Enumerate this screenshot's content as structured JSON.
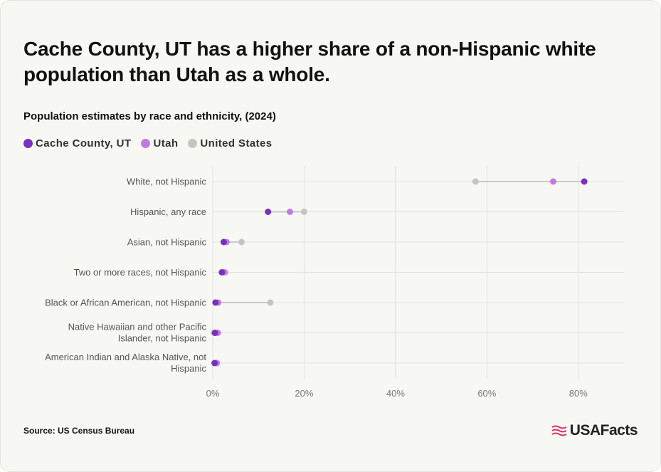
{
  "header": {
    "title": "Cache County, UT has a higher share of a non-Hispanic white population than Utah as a whole.",
    "subtitle": "Population estimates by race and ethnicity, (2024)"
  },
  "footer": {
    "source": "Source: US Census Bureau",
    "logo_text": "USAFacts"
  },
  "colors": {
    "cache": "#7b2fbe",
    "utah": "#c17be0",
    "us": "#c5c5c0",
    "connector": "#c9c9c4",
    "grid": "#e2e2dc"
  },
  "chart_data": {
    "type": "scatter",
    "subtype": "dot-plot",
    "title": "Cache County, UT has a higher share of a non-Hispanic white population than Utah as a whole.",
    "subtitle": "Population estimates by race and ethnicity, (2024)",
    "categories": [
      "White, not Hispanic",
      "Hispanic, any race",
      "Asian, not Hispanic",
      "Two or more races, not Hispanic",
      "Black or African American, not Hispanic",
      "Native Hawaiian and other Pacific Islander, not Hispanic",
      "American Indian and Alaska Native, not Hispanic"
    ],
    "category_lines": [
      [
        "White, not Hispanic"
      ],
      [
        "Hispanic, any race"
      ],
      [
        "Asian, not Hispanic"
      ],
      [
        "Two or more races, not Hispanic"
      ],
      [
        "Black or African American, not Hispanic"
      ],
      [
        "Native Hawaiian and other Pacific",
        "Islander, not Hispanic"
      ],
      [
        "American Indian and Alaska Native, not",
        "Hispanic"
      ]
    ],
    "series": [
      {
        "name": "Cache County, UT",
        "color": "#7b2fbe",
        "values": [
          81.3,
          12.1,
          2.4,
          2.0,
          0.6,
          0.5,
          0.4
        ]
      },
      {
        "name": "Utah",
        "color": "#c17be0",
        "values": [
          74.5,
          16.9,
          3.0,
          2.5,
          1.2,
          1.1,
          0.9
        ]
      },
      {
        "name": "United States",
        "color": "#c5c5c0",
        "values": [
          57.5,
          20.0,
          6.3,
          2.8,
          12.6,
          0.2,
          0.7
        ]
      }
    ],
    "xlim": [
      0,
      90
    ],
    "xticks": [
      0,
      20,
      40,
      60,
      80
    ],
    "xtick_labels": [
      "0%",
      "20%",
      "40%",
      "60%",
      "80%"
    ],
    "xlabel": "",
    "ylabel": "",
    "grid": true,
    "legend_position": "top-left"
  }
}
